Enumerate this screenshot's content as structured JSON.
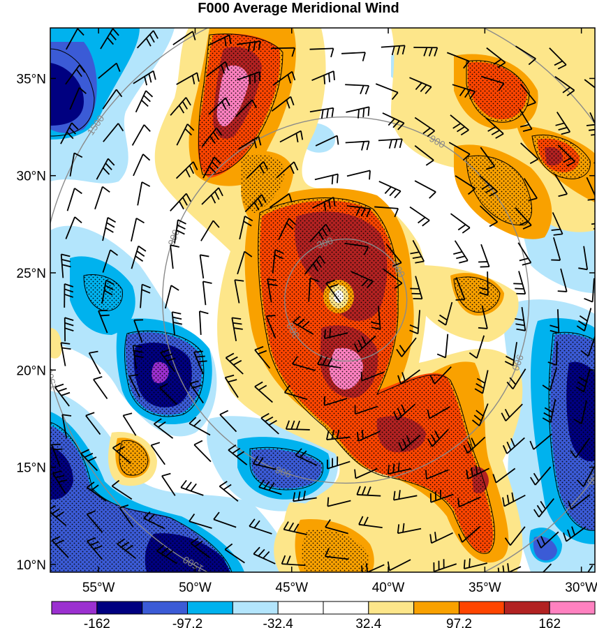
{
  "title": "F000 Average Meridional Wind",
  "map": {
    "lat_labels": [
      "35°N",
      "30°N",
      "25°N",
      "20°N",
      "15°N",
      "10°N"
    ],
    "lon_labels": [
      "55°W",
      "50°W",
      "45°W",
      "40°W",
      "35°W",
      "30°W"
    ],
    "lat_values": [
      35,
      30,
      25,
      20,
      15,
      10
    ],
    "lon_values": [
      -55,
      -50,
      -45,
      -40,
      -35,
      -30
    ],
    "lat_range": [
      9.6,
      37.6
    ],
    "lon_range": [
      -57.5,
      -29.3
    ],
    "storm_center": {
      "lon": -42.2,
      "lat": 23.6
    },
    "range_ring_values": [
      300,
      900,
      1500
    ],
    "range_ring_labels": [
      "300",
      "900",
      "1500"
    ],
    "contour_line_color": "#8a8a8a"
  },
  "colorbar": {
    "labels": [
      "-162",
      "-97.2",
      "-32.4",
      "32.4",
      "97.2",
      "162"
    ],
    "values": [
      -162,
      -97.2,
      -32.4,
      32.4,
      97.2,
      162
    ],
    "colors": [
      "#9b30d0",
      "#000080",
      "#3b5bd6",
      "#00b2ee",
      "#b3e5fc",
      "#ffffff",
      "#ffffff",
      "#fde68a",
      "#f9a100",
      "#ff4500",
      "#b22222",
      "#ff81c0"
    ]
  },
  "wind_field": {
    "palette": {
      "strong_negative": "#000080",
      "extreme_negative": "#9b30d0",
      "moderate_negative": "#3b5bd6",
      "weak_negative": "#00b2ee",
      "light_negative": "#b3e5fc",
      "light_positive": "#fde68a",
      "weak_positive": "#f9a100",
      "moderate_positive": "#ff4500",
      "strong_positive": "#b22222",
      "extreme_positive": "#ff81c0"
    }
  }
}
